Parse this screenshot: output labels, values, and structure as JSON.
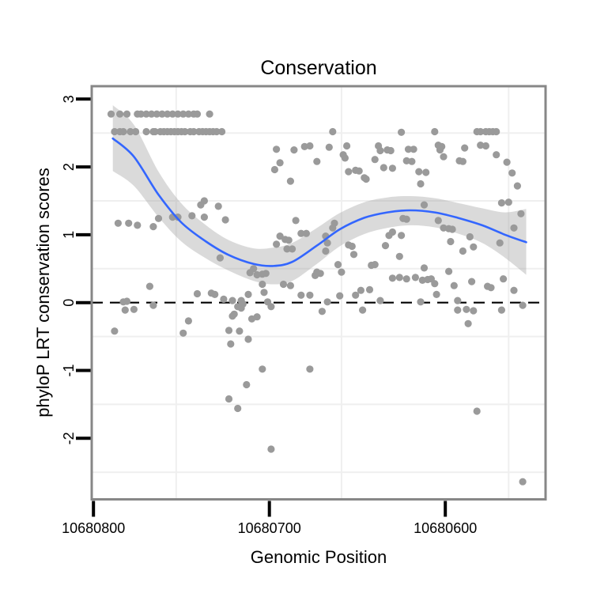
{
  "figure": {
    "title": "Conservation",
    "xlabel": "Genomic Position",
    "ylabel": "phyloP LRT conservation scores"
  },
  "colors": {
    "point": "#9a9a9a",
    "smooth_line": "#3366ff",
    "ribbon": "#9e9e9e",
    "ribbon_opacity": 0.38,
    "reference_line": "#000000",
    "frame": "#878787",
    "grid": "#efefef",
    "tick": "#000000"
  },
  "chart_data": {
    "type": "scatter",
    "title": "Conservation",
    "xlabel": "Genomic Position",
    "ylabel": "phyloP LRT conservation scores",
    "grid": true,
    "legend": false,
    "x_axis": {
      "reversed": true,
      "domain": [
        10680801,
        10680543
      ],
      "ticks": [
        10680800,
        10680700,
        10680600
      ],
      "tick_labels": [
        "10680800",
        "10680700",
        "10680600"
      ]
    },
    "y_axis": {
      "domain": [
        -2.9,
        3.19
      ],
      "ticks": [
        3,
        2,
        1,
        0,
        -1,
        -2
      ],
      "tick_labels": [
        "3",
        "2",
        "1",
        "0",
        "-1",
        "-2"
      ]
    },
    "grid_lines": {
      "x": [
        10680753,
        10680659,
        10680564
      ],
      "y": [
        2.5,
        1.5,
        0.5,
        -0.5,
        -1.5,
        -2.5
      ]
    },
    "reference_line": {
      "y": 0,
      "style": "dashed"
    },
    "point_style": {
      "radius": 4.6
    },
    "points": [
      [
        10680790,
        2.78
      ],
      [
        10680785,
        2.78
      ],
      [
        10680781,
        2.78
      ],
      [
        10680775,
        2.78
      ],
      [
        10680773,
        2.78
      ],
      [
        10680770,
        2.78
      ],
      [
        10680767,
        2.78
      ],
      [
        10680764,
        2.78
      ],
      [
        10680761,
        2.78
      ],
      [
        10680758,
        2.78
      ],
      [
        10680755,
        2.78
      ],
      [
        10680752,
        2.78
      ],
      [
        10680749,
        2.78
      ],
      [
        10680746,
        2.78
      ],
      [
        10680743,
        2.78
      ],
      [
        10680741,
        2.78
      ],
      [
        10680734,
        2.78
      ],
      [
        10680788,
        2.52
      ],
      [
        10680785,
        2.52
      ],
      [
        10680783,
        2.52
      ],
      [
        10680779,
        2.52
      ],
      [
        10680776,
        2.52
      ],
      [
        10680770,
        2.52
      ],
      [
        10680766,
        2.52
      ],
      [
        10680765,
        2.52
      ],
      [
        10680762,
        2.52
      ],
      [
        10680760,
        2.52
      ],
      [
        10680758,
        2.52
      ],
      [
        10680756,
        2.52
      ],
      [
        10680754,
        2.52
      ],
      [
        10680752,
        2.52
      ],
      [
        10680750,
        2.52
      ],
      [
        10680748,
        2.52
      ],
      [
        10680745,
        2.52
      ],
      [
        10680743,
        2.52
      ],
      [
        10680740,
        2.52
      ],
      [
        10680738,
        2.52
      ],
      [
        10680736,
        2.52
      ],
      [
        10680734,
        2.52
      ],
      [
        10680732,
        2.52
      ],
      [
        10680730,
        2.52
      ],
      [
        10680727,
        2.52
      ],
      [
        10680737,
        1.5
      ],
      [
        10680739,
        1.44
      ],
      [
        10680729,
        1.42
      ],
      [
        10680755,
        1.26
      ],
      [
        10680752,
        1.26
      ],
      [
        10680744,
        1.28
      ],
      [
        10680737,
        1.26
      ],
      [
        10680725,
        1.22
      ],
      [
        10680786,
        1.17
      ],
      [
        10680780,
        1.17
      ],
      [
        10680775,
        1.14
      ],
      [
        10680766,
        1.12
      ],
      [
        10680763,
        1.24
      ],
      [
        10680728,
        0.66
      ],
      [
        10680768,
        0.24
      ],
      [
        10680664,
        2.52
      ],
      [
        10680696,
        2.26
      ],
      [
        10680686,
        2.25
      ],
      [
        10680680,
        2.3
      ],
      [
        10680677,
        2.31
      ],
      [
        10680666,
        2.29
      ],
      [
        10680656,
        2.31
      ],
      [
        10680658,
        2.18
      ],
      [
        10680657,
        2.13
      ],
      [
        10680673,
        2.08
      ],
      [
        10680694,
        2.06
      ],
      [
        10680697,
        1.96
      ],
      [
        10680655,
        1.93
      ],
      [
        10680651,
        1.95
      ],
      [
        10680649,
        1.94
      ],
      [
        10680646,
        1.84
      ],
      [
        10680645,
        1.82
      ],
      [
        10680688,
        1.79
      ],
      [
        10680638,
        2.31
      ],
      [
        10680637,
        2.24
      ],
      [
        10680633,
        2.25
      ],
      [
        10680631,
        2.24
      ],
      [
        10680640,
        2.11
      ],
      [
        10680635,
        1.99
      ],
      [
        10680630,
        1.98
      ],
      [
        10680685,
        1.21
      ],
      [
        10680682,
        1.02
      ],
      [
        10680679,
        1.02
      ],
      [
        10680694,
        0.98
      ],
      [
        10680691,
        0.93
      ],
      [
        10680689,
        0.92
      ],
      [
        10680696,
        0.86
      ],
      [
        10680690,
        0.79
      ],
      [
        10680687,
        0.79
      ],
      [
        10680663,
        1.17
      ],
      [
        10680664,
        1.1
      ],
      [
        10680668,
        0.98
      ],
      [
        10680667,
        0.88
      ],
      [
        10680668,
        0.76
      ],
      [
        10680655,
        0.85
      ],
      [
        10680653,
        0.83
      ],
      [
        10680652,
        0.71
      ],
      [
        10680661,
        0.56
      ],
      [
        10680709,
        0.5
      ],
      [
        10680711,
        0.44
      ],
      [
        10680707,
        0.41
      ],
      [
        10680704,
        0.42
      ],
      [
        10680702,
        0.43
      ],
      [
        10680704,
        0.27
      ],
      [
        10680703,
        0.15
      ],
      [
        10680673,
        0.45
      ],
      [
        10680671,
        0.43
      ],
      [
        10680674,
        0.4
      ],
      [
        10680659,
        0.45
      ],
      [
        10680642,
        0.55
      ],
      [
        10680640,
        0.56
      ],
      [
        10680632,
        0.99
      ],
      [
        10680634,
        0.84
      ],
      [
        10680630,
        1.04
      ],
      [
        10680692,
        0.27
      ],
      [
        10680688,
        0.25
      ],
      [
        10680648,
        0.18
      ],
      [
        10680643,
        0.19
      ],
      [
        10680625,
        2.51
      ],
      [
        10680606,
        2.52
      ],
      [
        10680582,
        2.52
      ],
      [
        10680580,
        2.52
      ],
      [
        10680577,
        2.52
      ],
      [
        10680575,
        2.52
      ],
      [
        10680573,
        2.52
      ],
      [
        10680571,
        2.52
      ],
      [
        10680621,
        2.26
      ],
      [
        10680618,
        2.26
      ],
      [
        10680604,
        2.32
      ],
      [
        10680602,
        2.3
      ],
      [
        10680603,
        2.25
      ],
      [
        10680580,
        2.32
      ],
      [
        10680577,
        2.31
      ],
      [
        10680589,
        2.28
      ],
      [
        10680601,
        2.15
      ],
      [
        10680622,
        2.09
      ],
      [
        10680619,
        2.08
      ],
      [
        10680592,
        2.09
      ],
      [
        10680590,
        2.08
      ],
      [
        10680571,
        2.18
      ],
      [
        10680565,
        2.07
      ],
      [
        10680615,
        1.93
      ],
      [
        10680611,
        1.92
      ],
      [
        10680614,
        1.75
      ],
      [
        10680562,
        1.91
      ],
      [
        10680559,
        1.72
      ],
      [
        10680568,
        1.47
      ],
      [
        10680564,
        1.48
      ],
      [
        10680612,
        1.44
      ],
      [
        10680624,
        1.24
      ],
      [
        10680622,
        1.23
      ],
      [
        10680604,
        1.21
      ],
      [
        10680601,
        1.1
      ],
      [
        10680598,
        1.09
      ],
      [
        10680596,
        1.08
      ],
      [
        10680557,
        1.31
      ],
      [
        10680561,
        1.1
      ],
      [
        10680625,
        0.99
      ],
      [
        10680597,
        0.9
      ],
      [
        10680586,
        0.97
      ],
      [
        10680590,
        0.76
      ],
      [
        10680584,
        0.82
      ],
      [
        10680569,
        0.88
      ],
      [
        10680626,
        0.68
      ],
      [
        10680612,
        0.51
      ],
      [
        10680598,
        0.46
      ],
      [
        10680630,
        0.36
      ],
      [
        10680626,
        0.37
      ],
      [
        10680622,
        0.35
      ],
      [
        10680617,
        0.37
      ],
      [
        10680613,
        0.33
      ],
      [
        10680610,
        0.34
      ],
      [
        10680608,
        0.35
      ],
      [
        10680606,
        0.28
      ],
      [
        10680595,
        0.25
      ],
      [
        10680585,
        0.31
      ],
      [
        10680576,
        0.24
      ],
      [
        10680574,
        0.22
      ],
      [
        10680567,
        0.35
      ],
      [
        10680561,
        0.18
      ],
      [
        10680783,
        0.01
      ],
      [
        10680781,
        0.02
      ],
      [
        10680782,
        -0.11
      ],
      [
        10680777,
        -0.1
      ],
      [
        10680766,
        -0.04
      ],
      [
        10680788,
        -0.42
      ],
      [
        10680726,
        0.05
      ],
      [
        10680721,
        0.03
      ],
      [
        10680718,
        -0.06
      ],
      [
        10680716,
        -0.08
      ],
      [
        10680715,
        -0.02
      ],
      [
        10680720,
        -0.17
      ],
      [
        10680721,
        -0.2
      ],
      [
        10680746,
        -0.27
      ],
      [
        10680749,
        -0.45
      ],
      [
        10680723,
        -0.41
      ],
      [
        10680717,
        -0.42
      ],
      [
        10680722,
        -0.61
      ],
      [
        10680723,
        -1.42
      ],
      [
        10680718,
        -1.56
      ],
      [
        10680741,
        0.13
      ],
      [
        10680733,
        0.14
      ],
      [
        10680731,
        0.12
      ],
      [
        10680712,
        0.12
      ],
      [
        10680716,
        0.03
      ],
      [
        10680701,
        0.01
      ],
      [
        10680699,
        -0.06
      ],
      [
        10680710,
        -0.24
      ],
      [
        10680707,
        -0.21
      ],
      [
        10680712,
        -0.54
      ],
      [
        10680682,
        0.11
      ],
      [
        10680677,
        0.11
      ],
      [
        10680667,
        0.01
      ],
      [
        10680670,
        -0.13
      ],
      [
        10680660,
        0.1
      ],
      [
        10680651,
        0.11
      ],
      [
        10680637,
        0.03
      ],
      [
        10680647,
        -0.11
      ],
      [
        10680704,
        -0.98
      ],
      [
        10680677,
        -0.98
      ],
      [
        10680713,
        -1.21
      ],
      [
        10680699,
        -2.16
      ],
      [
        10680605,
        0.12
      ],
      [
        10680614,
        0.01
      ],
      [
        10680593,
        0.03
      ],
      [
        10680593,
        -0.11
      ],
      [
        10680588,
        -0.1
      ],
      [
        10680584,
        -0.12
      ],
      [
        10680587,
        -0.31
      ],
      [
        10680568,
        -0.11
      ],
      [
        10680556,
        -0.04
      ],
      [
        10680582,
        -1.6
      ],
      [
        10680556,
        -2.64
      ]
    ],
    "smooth_line": [
      [
        10680789,
        2.42
      ],
      [
        10680777,
        2.15
      ],
      [
        10680763,
        1.59
      ],
      [
        10680750,
        1.18
      ],
      [
        10680736,
        0.9
      ],
      [
        10680723,
        0.7
      ],
      [
        10680709,
        0.57
      ],
      [
        10680698,
        0.54
      ],
      [
        10680687,
        0.6
      ],
      [
        10680673,
        0.84
      ],
      [
        10680660,
        1.08
      ],
      [
        10680646,
        1.25
      ],
      [
        10680633,
        1.33
      ],
      [
        10680620,
        1.36
      ],
      [
        10680606,
        1.33
      ],
      [
        10680593,
        1.25
      ],
      [
        10680579,
        1.14
      ],
      [
        10680566,
        1.0
      ],
      [
        10680554,
        0.89
      ]
    ],
    "ribbon": [
      [
        10680789,
        1.94,
        2.91
      ],
      [
        10680777,
        1.72,
        2.62
      ],
      [
        10680763,
        1.26,
        1.93
      ],
      [
        10680750,
        0.9,
        1.46
      ],
      [
        10680736,
        0.65,
        1.14
      ],
      [
        10680723,
        0.47,
        0.92
      ],
      [
        10680709,
        0.32,
        0.8
      ],
      [
        10680698,
        0.27,
        0.81
      ],
      [
        10680687,
        0.32,
        0.88
      ],
      [
        10680673,
        0.57,
        1.1
      ],
      [
        10680660,
        0.83,
        1.32
      ],
      [
        10680646,
        1.01,
        1.48
      ],
      [
        10680633,
        1.1,
        1.55
      ],
      [
        10680620,
        1.14,
        1.57
      ],
      [
        10680606,
        1.11,
        1.54
      ],
      [
        10680593,
        1.02,
        1.47
      ],
      [
        10680579,
        0.88,
        1.39
      ],
      [
        10680566,
        0.66,
        1.33
      ],
      [
        10680554,
        0.41,
        1.38
      ]
    ]
  }
}
